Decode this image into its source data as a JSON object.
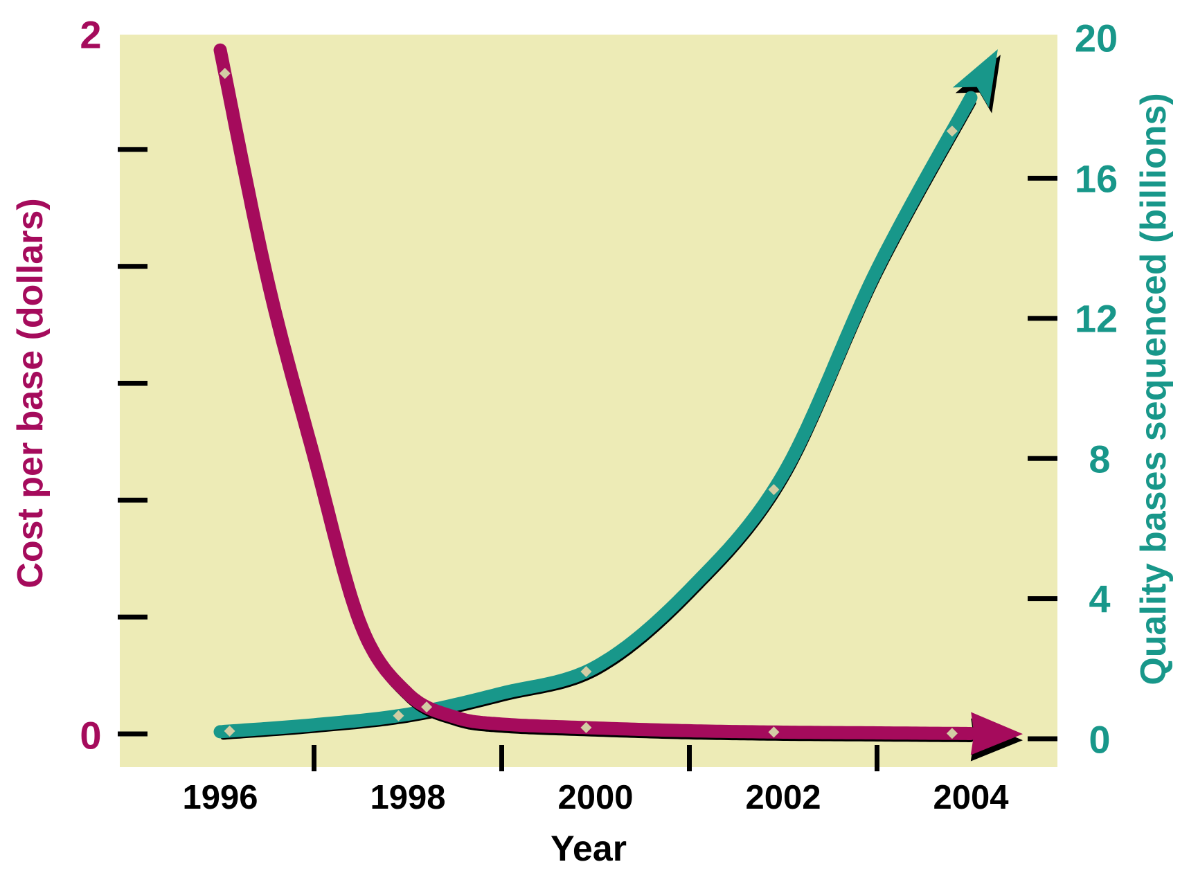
{
  "chart_data": {
    "type": "line",
    "title": "",
    "x_axis": {
      "title": "Year",
      "labels": [
        "1996",
        "1998",
        "2000",
        "2002",
        "2004"
      ],
      "label_years": [
        1996,
        1998,
        2000,
        2002,
        2004
      ],
      "minor_ticks": [
        1997,
        1999,
        2001,
        2003
      ],
      "range": [
        1995.9,
        2004.9
      ]
    },
    "left_axis": {
      "title": "Cost per base (dollars)",
      "labels": {
        "top": "2",
        "bottom": "0"
      },
      "range": [
        0,
        2
      ],
      "tick_values": [
        0,
        0.3333,
        0.6667,
        1,
        1.3333,
        1.6667
      ]
    },
    "right_axis": {
      "title": "Quality bases sequenced (billions)",
      "tick_labels": [
        "20",
        "16",
        "12",
        "8",
        "4",
        "0"
      ],
      "range": [
        0,
        20
      ],
      "tick_values": [
        0,
        4,
        8,
        12,
        16
      ]
    },
    "series": [
      {
        "name": "Cost per base (dollars)",
        "axis": "left",
        "color": "#A50B5C",
        "arrow_end": true,
        "points": [
          [
            1996,
            1.95
          ],
          [
            1996.5,
            1.3
          ],
          [
            1997,
            0.79
          ],
          [
            1997.5,
            0.31
          ],
          [
            1998,
            0.115
          ],
          [
            1998.5,
            0.048
          ],
          [
            1999,
            0.028
          ],
          [
            2000,
            0.017
          ],
          [
            2001,
            0.009
          ],
          [
            2002,
            0.005
          ],
          [
            2003,
            0.003
          ],
          [
            2004,
            0.001
          ]
        ],
        "marker_years": [
          1996.05,
          1998.2,
          1999.9,
          2001.9,
          2003.8
        ]
      },
      {
        "name": "Quality bases sequenced (billions)",
        "axis": "right",
        "color": "#18978A",
        "arrow_end": true,
        "points": [
          [
            1996,
            0.2
          ],
          [
            1997,
            0.4
          ],
          [
            1998,
            0.7
          ],
          [
            1999,
            1.3
          ],
          [
            2000,
            2.05
          ],
          [
            2001,
            4.25
          ],
          [
            2002,
            7.55
          ],
          [
            2003,
            13.4
          ],
          [
            2004,
            18.3
          ]
        ],
        "marker_years": [
          1996.1,
          1997.9,
          1999.9,
          2001.9,
          2003.8
        ]
      }
    ],
    "legend": "none",
    "grid": false,
    "colors": {
      "page_bg": "#FFFFFF",
      "plot_bg": "#EDEBB6",
      "cost": "#A50B5C",
      "quality": "#18978A",
      "marker": "#D2CDA4",
      "tick": "#000000"
    }
  }
}
